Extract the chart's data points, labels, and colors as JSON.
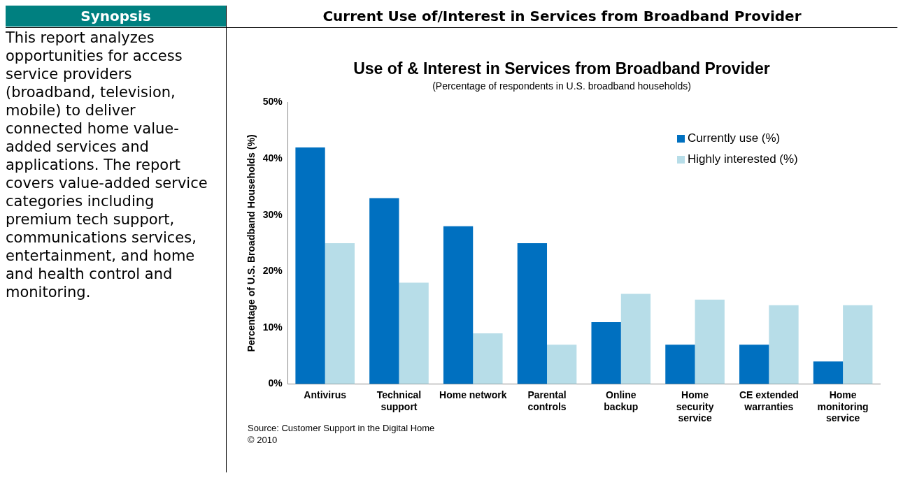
{
  "chart_data": {
    "type": "bar",
    "title": "Use of & Interest in Services from Broadband Provider",
    "subtitle": "(Percentage of respondents in U.S. broadband households)",
    "ylabel": "Percentage of U.S. Broadband Households (%)",
    "categories": [
      "Antivirus",
      "Technical support",
      "Home network",
      "Parental controls",
      "Online backup",
      "Home security service",
      "CE extended warranties",
      "Home monitoring service"
    ],
    "series": [
      {
        "name": "Currently use (%)",
        "color": "#0070c0",
        "values": [
          42,
          33,
          28,
          25,
          11,
          7,
          7,
          4
        ]
      },
      {
        "name": "Highly interested (%)",
        "color": "#b7dde8",
        "values": [
          25,
          18,
          9,
          7,
          16,
          15,
          14,
          14
        ]
      }
    ],
    "ylim": [
      0,
      50
    ],
    "yticks": [
      {
        "value": 0,
        "label": "0%"
      },
      {
        "value": 10,
        "label": "10%"
      },
      {
        "value": 20,
        "label": "20%"
      },
      {
        "value": 30,
        "label": "30%"
      },
      {
        "value": 40,
        "label": "40%"
      },
      {
        "value": 50,
        "label": "50%"
      }
    ],
    "grid": false,
    "legend": "top right",
    "annotations": [
      "Synopsis",
      "Current Use of/Interest in Services from Broadband Provider",
      "This report analyzes opportunities for access service providers (broadband, television, mobile) to deliver connected home value-added services and applications. The report covers value-added service categories including premium tech support, communications services, entertainment, and home and health control and monitoring.",
      "Source: Customer Support in the Digital Home",
      "© 2010"
    ]
  }
}
